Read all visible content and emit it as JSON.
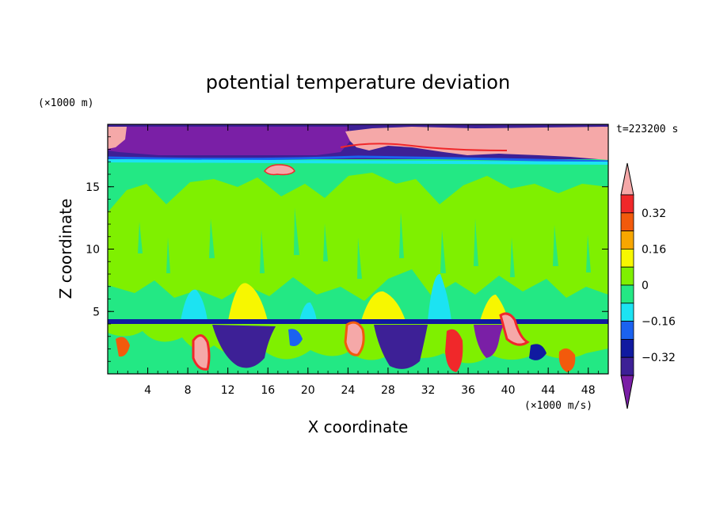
{
  "chart_data": {
    "type": "heatmap",
    "title": "potential temperature deviation",
    "xlabel": "X coordinate",
    "ylabel": "Z coordinate",
    "x_unit": "(×1000 m/s)",
    "y_unit": "(×1000 m)",
    "time_label": "t=223200 s",
    "xlim": [
      0,
      50
    ],
    "ylim": [
      0,
      20
    ],
    "x_ticks": [
      4,
      8,
      12,
      16,
      20,
      24,
      28,
      32,
      36,
      40,
      44,
      48
    ],
    "y_ticks": [
      5,
      10,
      15
    ],
    "colorbar": {
      "levels": [
        -0.4,
        -0.32,
        -0.24,
        -0.16,
        -0.08,
        0,
        0.08,
        0.16,
        0.24,
        0.32,
        0.4
      ],
      "labels": [
        "0.32",
        "0.16",
        "0",
        "−0.16",
        "−0.32"
      ],
      "label_values": [
        0.32,
        0.16,
        0,
        -0.16,
        -0.32
      ],
      "colors": {
        "lt_-0.4": "#7a1fa6",
        "-0.4_-0.32": "#3d2096",
        "-0.32_-0.24": "#101aa0",
        "-0.24_-0.16": "#1b62f0",
        "-0.16_-0.08": "#1ce3f2",
        "-0.08_0": "#23e884",
        "0_0.08": "#7ff000",
        "0.08_0.16": "#f7f700",
        "0.16_0.24": "#f7a600",
        "0.24_0.32": "#f25a0c",
        "0.32_0.4": "#f0282a",
        "gt_0.4": "#f5a8a8"
      }
    }
  }
}
